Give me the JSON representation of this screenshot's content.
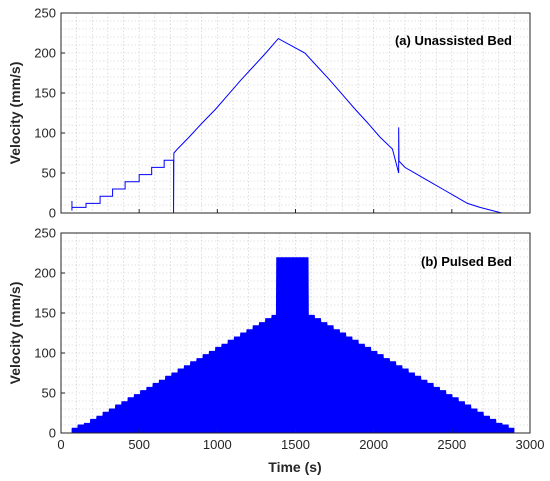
{
  "chart_data": [
    {
      "type": "line",
      "title": "(a) Unassisted Bed",
      "xlabel": "",
      "ylabel": "Velocity (mm/s)",
      "xlim": [
        0,
        3000
      ],
      "ylim": [
        0,
        250
      ],
      "x_ticks": [
        "0",
        "500",
        "1000",
        "1500",
        "2000",
        "2500",
        "3000"
      ],
      "y_ticks": [
        "0",
        "50",
        "100",
        "150",
        "200",
        "250"
      ],
      "grid": true,
      "color": "#0000ff",
      "series": [
        {
          "x": [
            70,
            70,
            70,
            160,
            160,
            250,
            250,
            330,
            330,
            410,
            410,
            500,
            500,
            580,
            580,
            660,
            660,
            720,
            720,
            722,
            722,
            745,
            745,
            820,
            820,
            905,
            905,
            990,
            990,
            1070,
            1070,
            1150,
            1150,
            1230,
            1230,
            1310,
            1310,
            1390,
            1390,
            1560,
            1560,
            1640,
            1640,
            1720,
            1720,
            1800,
            1800,
            1880,
            1880,
            1960,
            1960,
            2040,
            2040,
            2120,
            2120,
            2160,
            2160,
            2162,
            2162,
            2200,
            2200,
            2280,
            2280,
            2360,
            2360,
            2440,
            2440,
            2520,
            2520,
            2600,
            2600,
            2680,
            2680,
            2760,
            2760,
            2820
          ],
          "y": [
            3,
            15,
            7,
            7,
            12,
            12,
            21,
            21,
            30,
            30,
            39,
            39,
            48,
            48,
            57,
            57,
            66,
            66,
            0,
            75,
            75,
            80,
            80,
            95,
            95,
            113,
            113,
            130,
            130,
            148,
            148,
            166,
            166,
            183,
            183,
            200,
            200,
            218,
            218,
            200,
            200,
            183,
            183,
            166,
            166,
            148,
            148,
            130,
            130,
            113,
            113,
            95,
            95,
            80,
            80,
            50,
            107,
            65,
            65,
            57,
            57,
            48,
            48,
            39,
            39,
            30,
            30,
            21,
            21,
            12,
            12,
            7,
            7,
            3,
            3,
            0
          ]
        }
      ]
    },
    {
      "type": "area",
      "title": "(b) Pulsed Bed",
      "xlabel": "Time (s)",
      "ylabel": "Velocity (mm/s)",
      "xlim": [
        0,
        3000
      ],
      "ylim": [
        0,
        250
      ],
      "x_ticks": [
        "0",
        "500",
        "1000",
        "1500",
        "2000",
        "2500",
        "3000"
      ],
      "y_ticks": [
        "0",
        "50",
        "100",
        "150",
        "200",
        "250"
      ],
      "grid": true,
      "color": "#0000ff",
      "series": [
        {
          "x_start": 70,
          "x_end": 2900,
          "peak_x": 1480,
          "plateau": [
            1380,
            1580
          ],
          "step_width_s": 40,
          "peak_value": 219,
          "step_values": [
            6,
            10,
            12,
            17,
            21,
            26,
            30,
            35,
            39,
            44,
            48,
            53,
            57,
            62,
            66,
            71,
            75,
            80,
            84,
            89,
            93,
            98,
            102,
            107,
            111,
            116,
            120,
            125,
            129,
            134,
            138,
            143,
            147,
            152,
            156,
            161,
            165,
            170,
            174,
            179,
            183,
            188,
            192,
            197,
            201,
            206,
            210,
            219
          ]
        }
      ]
    }
  ]
}
